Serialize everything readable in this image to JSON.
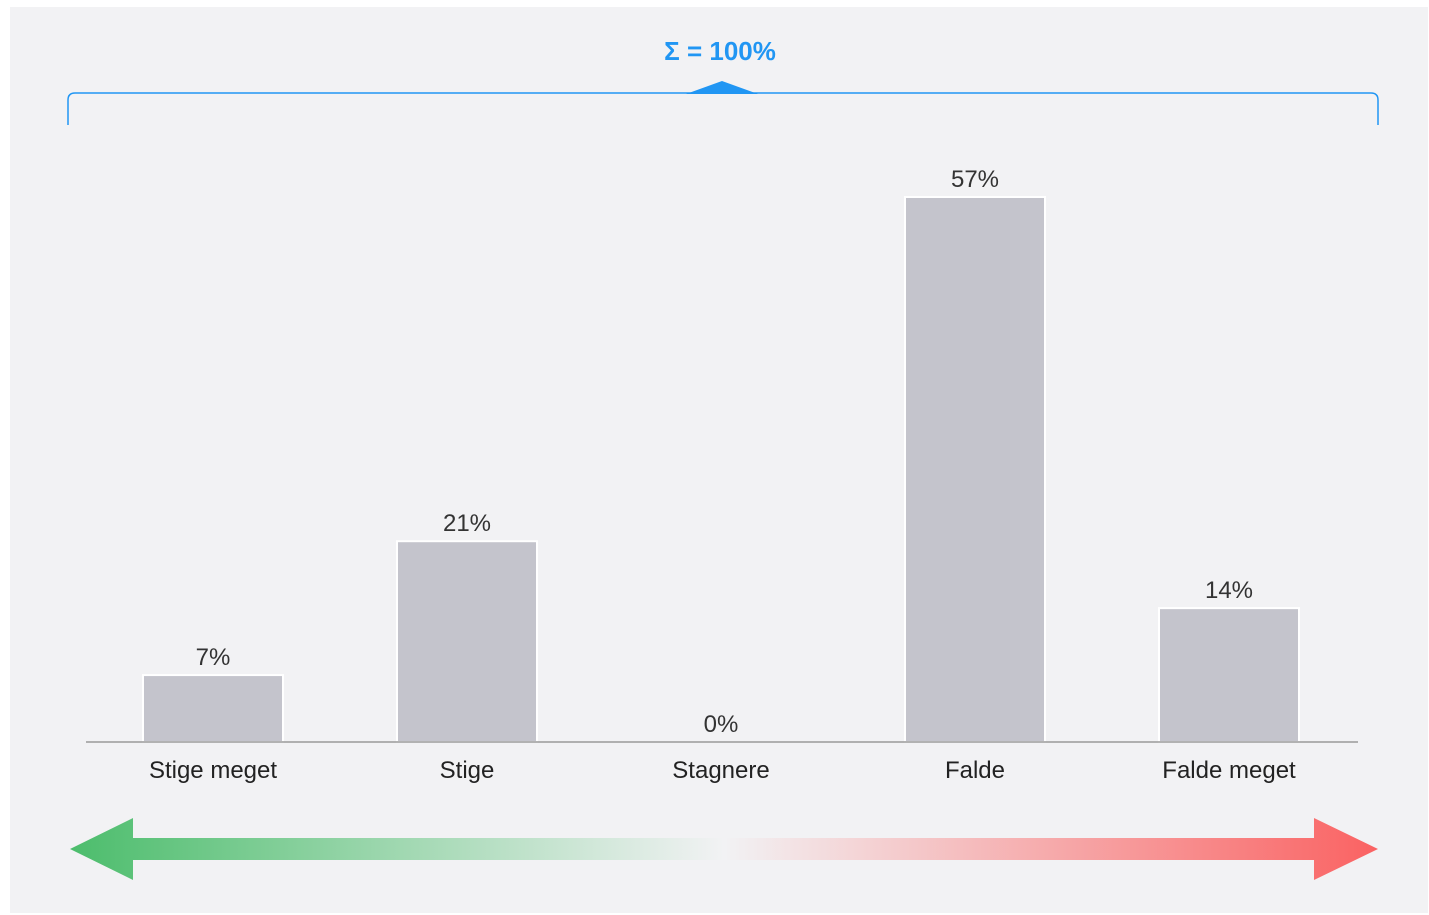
{
  "chart_data": {
    "type": "bar",
    "categories": [
      "Stige meget",
      "Stige",
      "Stagnere",
      "Falde",
      "Falde meget"
    ],
    "values": [
      7,
      21,
      0,
      57,
      14
    ],
    "value_labels": [
      "7%",
      "21%",
      "0%",
      "57%",
      "14%"
    ],
    "sum_label": "Σ = 100%",
    "ylim": [
      0,
      57
    ],
    "grid": false,
    "legend": "none"
  },
  "colors": {
    "bar": "#c4c4cc",
    "bar_stroke": "#ffffff",
    "sum_accent": "#2196f3",
    "axis": "#999999",
    "arrow_left": "#4cbd6c",
    "arrow_mid": "#f2f2f4",
    "arrow_right": "#fa6262"
  }
}
